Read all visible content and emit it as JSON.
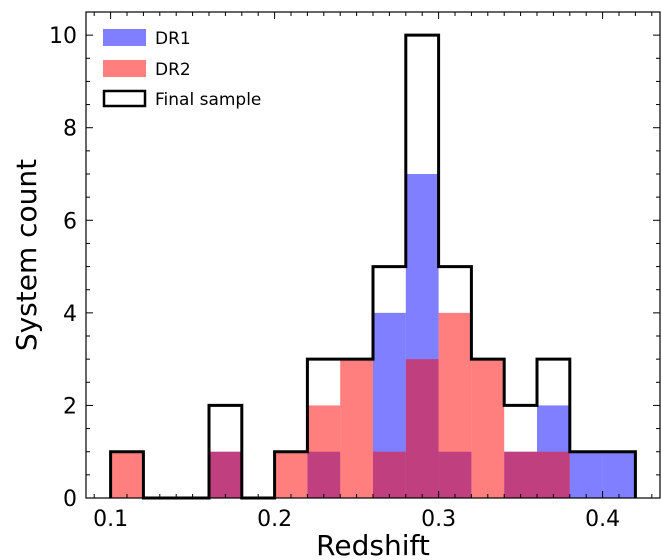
{
  "chart_data": {
    "type": "bar",
    "subtype": "histogram",
    "xlabel": "Redshift",
    "ylabel": "System count",
    "xlim": [
      0.085,
      0.435
    ],
    "ylim": [
      0,
      10.5
    ],
    "x_ticks": [
      "0.1",
      "0.2",
      "0.3",
      "0.4"
    ],
    "y_ticks": [
      "0",
      "2",
      "4",
      "6",
      "8",
      "10"
    ],
    "bin_edges": [
      0.1,
      0.12,
      0.14,
      0.16,
      0.18,
      0.2,
      0.22,
      0.24,
      0.26,
      0.28,
      0.3,
      0.32,
      0.34,
      0.36,
      0.38,
      0.4,
      0.42
    ],
    "series": [
      {
        "name": "DR1",
        "style": "filled",
        "color": "#0000ff",
        "alpha": 0.5,
        "values": [
          0,
          0,
          0,
          1,
          0,
          0,
          1,
          0,
          4,
          7,
          1,
          0,
          1,
          2,
          1,
          1
        ]
      },
      {
        "name": "DR2",
        "style": "filled",
        "color": "#ff0000",
        "alpha": 0.5,
        "values": [
          1,
          0,
          0,
          1,
          0,
          1,
          2,
          3,
          1,
          3,
          4,
          3,
          1,
          1,
          0,
          0
        ]
      },
      {
        "name": "Final sample",
        "style": "step",
        "color": "#000000",
        "values": [
          1,
          0,
          0,
          2,
          0,
          1,
          3,
          3,
          5,
          10,
          5,
          3,
          2,
          3,
          1,
          1
        ]
      }
    ],
    "legend_position": "top-left",
    "grid": false
  }
}
